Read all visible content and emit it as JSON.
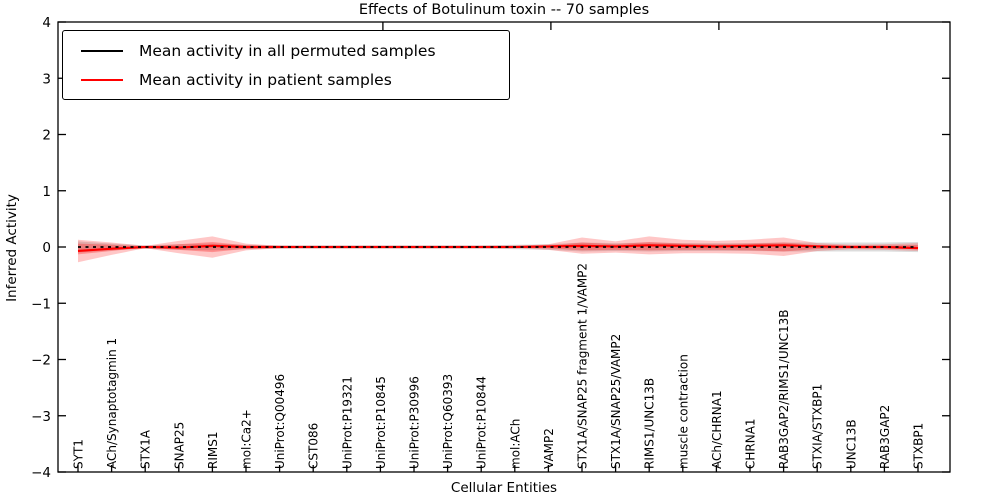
{
  "window": {
    "title": "Effects of Botulinum toxin -- 70 samples"
  },
  "chart_data": {
    "type": "line",
    "title": "Effects of Botulinum toxin -- 70 samples",
    "xlabel": "Cellular Entities",
    "ylabel": "Inferred Activity",
    "ylim": [
      -4,
      4
    ],
    "yticks": [
      -4,
      -3,
      -2,
      -1,
      0,
      1,
      2,
      3,
      4
    ],
    "grid": false,
    "legend_position": "upper left",
    "categories": [
      "SYT1",
      "ACh/Synaptotagmin 1",
      "STX1A",
      "SNAP25",
      "RIMS1",
      "mol:Ca2+",
      "UniProt:Q00496",
      "CST086",
      "UniProt:P19321",
      "UniProt:P10845",
      "UniProt:P30996",
      "UniProt:Q60393",
      "UniProt:P10844",
      "mol:ACh",
      "VAMP2",
      "STX1A/SNAP25 fragment 1/VAMP2",
      "STX1A/SNAP25/VAMP2",
      "RIMS1/UNC13B",
      "muscle contraction",
      "ACh/CHRNA1",
      "CHRNA1",
      "RAB3GAP2/RIMS1/UNC13B",
      "STXIA/STXBP1",
      "UNC13B",
      "RAB3GAP2",
      "STXBP1"
    ],
    "series": [
      {
        "name": "Mean activity in all permuted samples",
        "color": "#000000",
        "style": "dashed",
        "values": [
          0,
          0,
          0,
          0,
          0,
          0,
          0,
          0,
          0,
          0,
          0,
          0,
          0,
          0,
          0,
          0,
          0,
          0,
          0,
          0,
          0,
          0,
          0,
          0,
          0,
          0
        ]
      },
      {
        "name": "Mean activity in patient samples",
        "color": "#ff0000",
        "style": "solid",
        "values": [
          -0.07,
          -0.03,
          0,
          -0.01,
          0.02,
          0,
          0,
          0,
          0,
          0,
          0,
          0,
          0,
          0,
          0.01,
          0.02,
          0.01,
          0.03,
          0.02,
          0.01,
          0.02,
          0.03,
          0.01,
          0,
          0,
          -0.02
        ]
      }
    ],
    "bands": [
      {
        "name": "permuted-samples-std-band",
        "color": "#808080",
        "opacity": 0.28,
        "upper": [
          0.1,
          0.06,
          0.03,
          0.05,
          0.06,
          0.04,
          0.03,
          0.03,
          0.03,
          0.03,
          0.03,
          0.03,
          0.03,
          0.04,
          0.05,
          0.08,
          0.07,
          0.08,
          0.07,
          0.07,
          0.07,
          0.08,
          0.08,
          0.08,
          0.08,
          0.09
        ],
        "lower": [
          -0.1,
          -0.06,
          -0.03,
          -0.05,
          -0.06,
          -0.04,
          -0.03,
          -0.03,
          -0.03,
          -0.03,
          -0.03,
          -0.03,
          -0.03,
          -0.04,
          -0.05,
          -0.08,
          -0.07,
          -0.08,
          -0.07,
          -0.07,
          -0.07,
          -0.08,
          -0.08,
          -0.08,
          -0.08,
          -0.09
        ]
      },
      {
        "name": "patient-samples-outer-band",
        "color": "#ff0000",
        "opacity": 0.22,
        "upper": [
          0.13,
          0.08,
          0.02,
          0.11,
          0.19,
          0.06,
          0.02,
          0.015,
          0.015,
          0.015,
          0.015,
          0.015,
          0.015,
          0.02,
          0.05,
          0.17,
          0.1,
          0.19,
          0.13,
          0.11,
          0.13,
          0.17,
          0.07,
          0.04,
          0.05,
          0.07
        ],
        "lower": [
          -0.27,
          -0.14,
          -0.02,
          -0.11,
          -0.19,
          -0.06,
          -0.02,
          -0.015,
          -0.015,
          -0.015,
          -0.015,
          -0.015,
          -0.015,
          -0.02,
          -0.05,
          -0.12,
          -0.1,
          -0.13,
          -0.11,
          -0.11,
          -0.12,
          -0.16,
          -0.07,
          -0.04,
          -0.05,
          -0.07
        ]
      },
      {
        "name": "patient-samples-inner-band",
        "color": "#ff0000",
        "opacity": 0.28,
        "upper": [
          0.06,
          0.04,
          0.01,
          0.05,
          0.09,
          0.03,
          0.01,
          0.008,
          0.008,
          0.008,
          0.008,
          0.008,
          0.008,
          0.01,
          0.025,
          0.08,
          0.05,
          0.09,
          0.06,
          0.05,
          0.06,
          0.08,
          0.035,
          0.02,
          0.025,
          0.035
        ],
        "lower": [
          -0.13,
          -0.07,
          -0.01,
          -0.05,
          -0.09,
          -0.03,
          -0.01,
          -0.008,
          -0.008,
          -0.008,
          -0.008,
          -0.008,
          -0.008,
          -0.01,
          -0.025,
          -0.06,
          -0.05,
          -0.06,
          -0.05,
          -0.05,
          -0.06,
          -0.08,
          -0.035,
          -0.02,
          -0.025,
          -0.035
        ]
      }
    ],
    "layout_hints": {
      "top_tick_indices": [
        9,
        14,
        19,
        24
      ],
      "axis_color": "#000000",
      "background": "#ffffff"
    }
  },
  "legend": {
    "entries": [
      {
        "label": "Mean activity in all permuted samples",
        "color": "#000000"
      },
      {
        "label": "Mean activity in patient samples",
        "color": "#ff0000"
      }
    ]
  }
}
